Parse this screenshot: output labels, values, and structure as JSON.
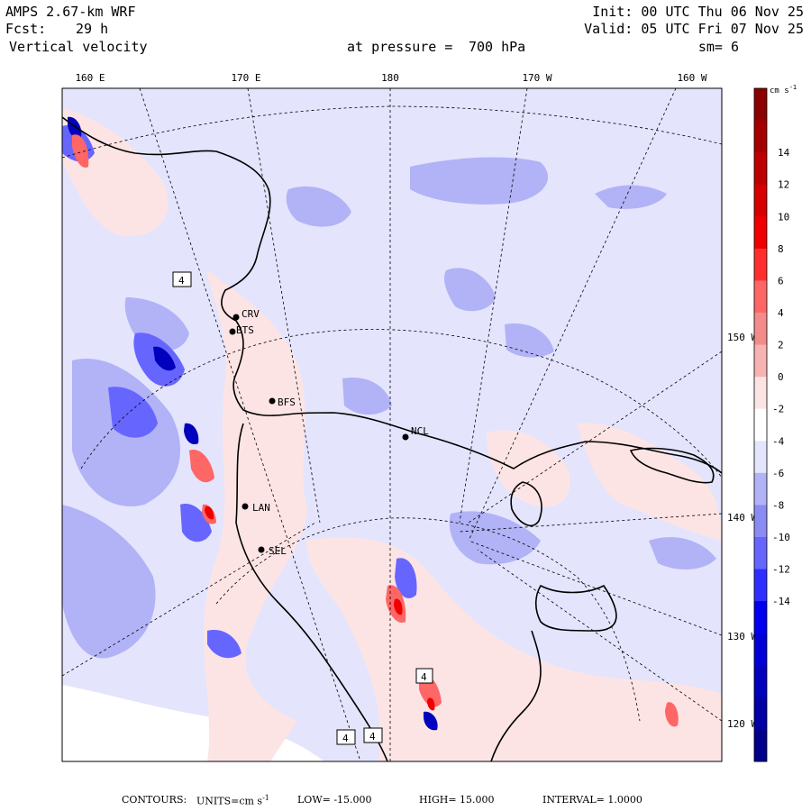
{
  "header": {
    "model": "AMPS 2.67-km WRF",
    "init": "Init: 00 UTC Thu 06 Nov 25",
    "fcst_label": "Fcst:",
    "fcst_value": "29 h",
    "valid": "Valid: 05 UTC Fri 07 Nov 25",
    "field": "Vertical velocity",
    "pressure_label": "at pressure =",
    "pressure_value": "700 hPa",
    "smoothing": "sm= 6"
  },
  "lon_labels": [
    "160 E",
    "170 E",
    "180",
    "170 W",
    "160 W"
  ],
  "lat_labels": [
    "150 W",
    "140 W",
    "130 W",
    "120 W"
  ],
  "stations": [
    "CRV",
    "BTS",
    "BFS",
    "NCL",
    "LAN",
    "SEL"
  ],
  "contour_label": "4",
  "colorbar": {
    "unit_text": "cm s",
    "unit_exp": "-1",
    "tick_labels": [
      "14",
      "12",
      "10",
      "8",
      "6",
      "4",
      "2",
      "0",
      "-2",
      "-4",
      "-6",
      "-8",
      "-10",
      "-12",
      "-14"
    ],
    "colors": [
      "#8b0000",
      "#a40000",
      "#bd0000",
      "#d60000",
      "#ef0000",
      "#ff2e2e",
      "#ff6666",
      "#f48b8b",
      "#f7b2b2",
      "#fde4e4",
      "#ffffff",
      "#e4e4fd",
      "#b2b2f7",
      "#8b8bf4",
      "#6666ff",
      "#2e2eff",
      "#0000ef",
      "#0000d6",
      "#0000bd",
      "#0000a4",
      "#00008b"
    ]
  },
  "footer": {
    "contours": "CONTOURS:",
    "units_label": "UNITS=cm s",
    "units_exp": "-1",
    "low": "LOW= -15.000",
    "high": "HIGH= 15.000",
    "interval": "INTERVAL= 1.0000"
  }
}
